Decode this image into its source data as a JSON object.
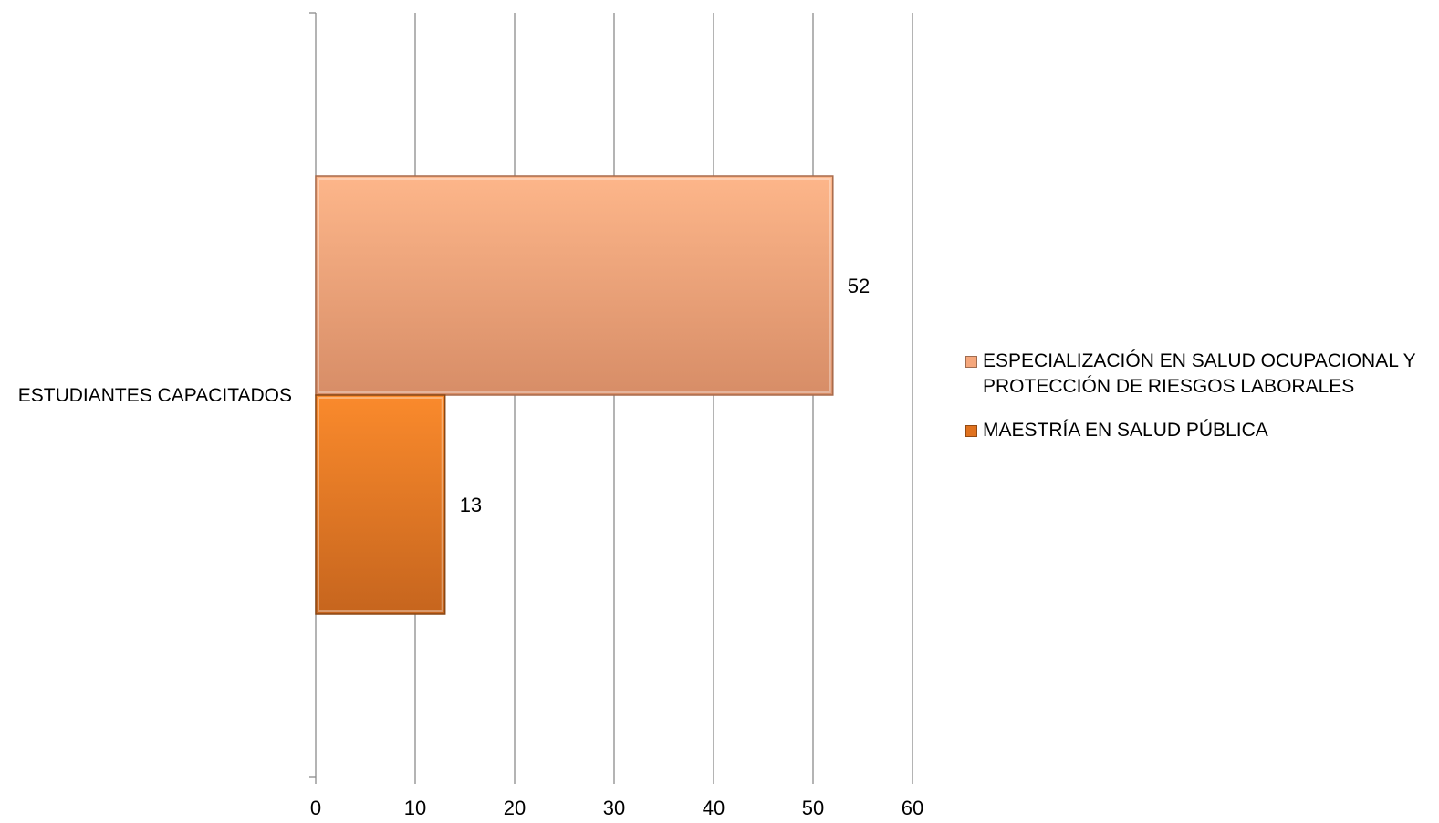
{
  "chart_data": {
    "type": "bar",
    "orientation": "horizontal",
    "categories": [
      "ESTUDIANTES CAPACITADOS"
    ],
    "series": [
      {
        "name": "ESPECIALIZACIÓN EN SALUD OCUPACIONAL Y PROTECCIÓN DE RIESGOS LABORALES",
        "values": [
          52
        ],
        "color": "#F5A77C"
      },
      {
        "name": "MAESTRÍA EN SALUD PÚBLICA",
        "values": [
          13
        ],
        "color": "#E0721F"
      }
    ],
    "title": "",
    "xlabel": "",
    "ylabel": "",
    "xlim": [
      0,
      60
    ],
    "xticks": [
      "0",
      "10",
      "20",
      "30",
      "40",
      "50",
      "60"
    ],
    "data_labels": [
      "52",
      "13"
    ],
    "grid": "vertical",
    "legend": "right"
  }
}
